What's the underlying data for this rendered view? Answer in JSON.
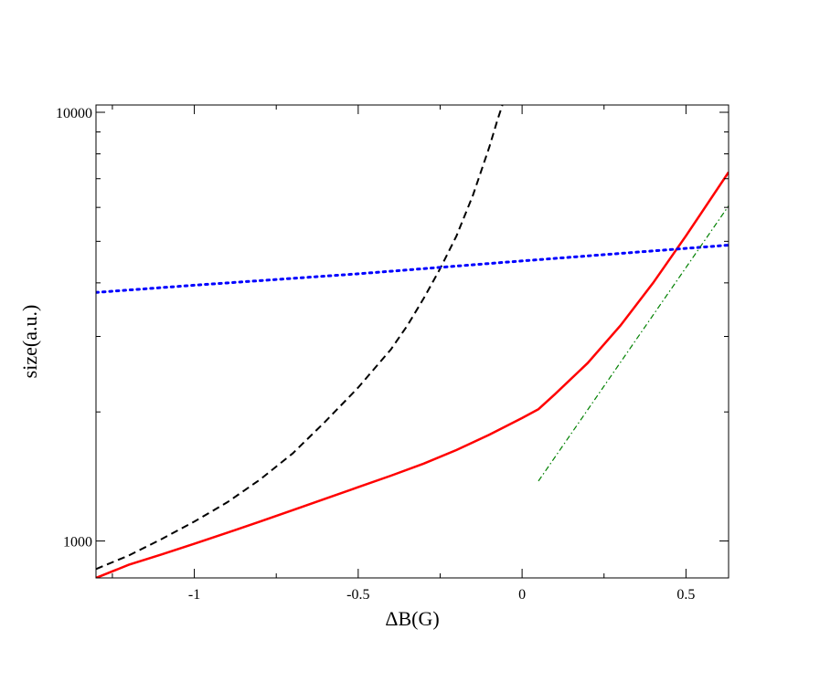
{
  "chart_data": {
    "type": "line",
    "xlabel": "ΔB(G)",
    "ylabel": "size(a.u.)",
    "xlim": [
      -1.3,
      0.63
    ],
    "ylim": [
      820,
      10400
    ],
    "yscale": "log",
    "grid": false,
    "x_ticks": [
      {
        "value": -1,
        "label": "-1"
      },
      {
        "value": -0.5,
        "label": "-0.5"
      },
      {
        "value": 0,
        "label": "0"
      },
      {
        "value": 0.5,
        "label": "0.5"
      }
    ],
    "x_minor_ticks": [
      -1.25,
      -0.75,
      -0.25,
      0.25
    ],
    "y_ticks": [
      {
        "value": 1000,
        "label": "1000"
      },
      {
        "value": 10000,
        "label": "10000"
      }
    ],
    "y_minor_ticks": [
      2000,
      3000,
      4000,
      5000,
      6000,
      7000,
      8000,
      9000
    ],
    "series": [
      {
        "color": "#000000",
        "dash": "dashed",
        "width": 2,
        "points": [
          [
            -1.3,
            860
          ],
          [
            -1.2,
            925
          ],
          [
            -1.1,
            1010
          ],
          [
            -1.0,
            1110
          ],
          [
            -0.9,
            1230
          ],
          [
            -0.8,
            1390
          ],
          [
            -0.7,
            1600
          ],
          [
            -0.6,
            1900
          ],
          [
            -0.5,
            2280
          ],
          [
            -0.4,
            2800
          ],
          [
            -0.35,
            3180
          ],
          [
            -0.3,
            3680
          ],
          [
            -0.25,
            4320
          ],
          [
            -0.2,
            5150
          ],
          [
            -0.15,
            6400
          ],
          [
            -0.1,
            8300
          ],
          [
            -0.075,
            9600
          ],
          [
            -0.06,
            10400
          ]
        ]
      },
      {
        "color": "#ff0000",
        "dash": "solid",
        "width": 2.5,
        "points": [
          [
            -1.3,
            820
          ],
          [
            -1.2,
            880
          ],
          [
            -1.1,
            930
          ],
          [
            -1.0,
            985
          ],
          [
            -0.9,
            1045
          ],
          [
            -0.8,
            1110
          ],
          [
            -0.7,
            1180
          ],
          [
            -0.6,
            1255
          ],
          [
            -0.5,
            1335
          ],
          [
            -0.4,
            1420
          ],
          [
            -0.3,
            1515
          ],
          [
            -0.2,
            1630
          ],
          [
            -0.1,
            1770
          ],
          [
            0.0,
            1935
          ],
          [
            0.05,
            2030
          ],
          [
            0.1,
            2200
          ],
          [
            0.2,
            2600
          ],
          [
            0.3,
            3180
          ],
          [
            0.4,
            4000
          ],
          [
            0.5,
            5150
          ],
          [
            0.63,
            7250
          ]
        ]
      },
      {
        "color": "#0000ff",
        "dash": "dotted",
        "width": 3,
        "points": [
          [
            -1.3,
            3800
          ],
          [
            -1.0,
            3950
          ],
          [
            -0.5,
            4200
          ],
          [
            0.0,
            4500
          ],
          [
            0.63,
            4900
          ]
        ]
      },
      {
        "color": "#008000",
        "dash": "dash-dot",
        "width": 1.2,
        "points": [
          [
            0.05,
            1380
          ],
          [
            0.63,
            6050
          ]
        ]
      }
    ]
  }
}
